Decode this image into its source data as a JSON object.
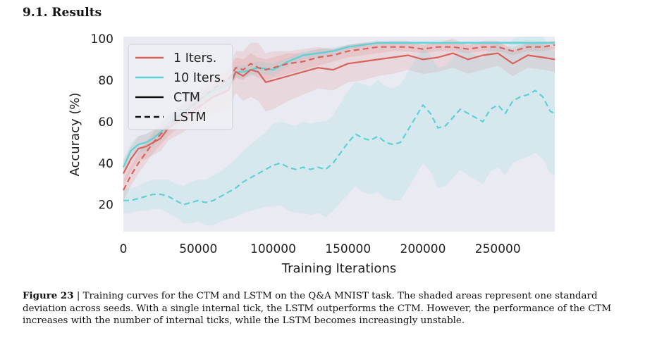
{
  "section": {
    "heading": "9.1. Results"
  },
  "caption": {
    "label": "Figure 23",
    "separator": " | ",
    "text": "Training curves for the CTM and LSTM on the Q&A MNIST task. The shaded areas represent one standard deviation across seeds. With a single internal tick, the LSTM outperforms the CTM. However, the performance of the CTM increases with the number of internal ticks, while the LSTM becomes increasingly unstable."
  },
  "colors": {
    "red": "#d9625b",
    "cyan": "#5bd1d8",
    "plot_bg": "#eaeaf2"
  },
  "chart_data": {
    "type": "line",
    "xlabel": "Training Iterations",
    "ylabel": "Accuracy (%)",
    "xlim": [
      0,
      288000
    ],
    "ylim": [
      7,
      101
    ],
    "xticks": [
      0,
      50000,
      100000,
      150000,
      200000,
      250000
    ],
    "xtick_labels": [
      "0",
      "50000",
      "100000",
      "150000",
      "200000",
      "250000"
    ],
    "yticks": [
      20,
      40,
      60,
      80,
      100
    ],
    "ytick_labels": [
      "20",
      "40",
      "60",
      "80",
      "100"
    ],
    "grid": false,
    "legend": {
      "placement": "top-left",
      "entries": [
        {
          "label": "1 Iters.",
          "color": "#d9625b",
          "style": "solid"
        },
        {
          "label": "10 Iters.",
          "color": "#5bd1d8",
          "style": "solid"
        },
        {
          "label": "CTM",
          "color": "#111111",
          "style": "solid"
        },
        {
          "label": "LSTM",
          "color": "#111111",
          "style": "dashed"
        }
      ]
    },
    "series": [
      {
        "name": "1 Iters. CTM",
        "color": "#d9625b",
        "style": "solid",
        "x": [
          0,
          5000,
          10000,
          15000,
          20000,
          25000,
          30000,
          40000,
          50000,
          60000,
          70000,
          75000,
          80000,
          85000,
          90000,
          95000,
          100000,
          110000,
          120000,
          130000,
          140000,
          150000,
          160000,
          170000,
          180000,
          190000,
          200000,
          210000,
          220000,
          230000,
          240000,
          250000,
          260000,
          270000,
          280000,
          288000
        ],
        "y": [
          35,
          42,
          47,
          48,
          50,
          52,
          57,
          62,
          67,
          72,
          75,
          84,
          82,
          85,
          84,
          79,
          80,
          82,
          84,
          86,
          85,
          88,
          89,
          90,
          91,
          92,
          90,
          91,
          93,
          90,
          92,
          93,
          88,
          92,
          91,
          90
        ],
        "std": [
          6,
          6,
          6,
          6,
          6,
          6,
          6,
          7,
          7,
          8,
          9,
          10,
          12,
          13,
          14,
          14,
          14,
          12,
          11,
          10,
          10,
          9,
          9,
          8,
          8,
          7,
          7,
          7,
          7,
          7,
          7,
          6,
          6,
          6,
          6,
          6
        ]
      },
      {
        "name": "1 Iters. LSTM",
        "color": "#d9625b",
        "style": "dashed",
        "x": [
          0,
          5000,
          10000,
          15000,
          20000,
          25000,
          30000,
          40000,
          50000,
          60000,
          70000,
          75000,
          80000,
          85000,
          90000,
          95000,
          100000,
          110000,
          120000,
          130000,
          140000,
          150000,
          160000,
          170000,
          180000,
          190000,
          200000,
          210000,
          220000,
          230000,
          240000,
          250000,
          260000,
          270000,
          280000,
          288000
        ],
        "y": [
          27,
          34,
          40,
          45,
          50,
          54,
          58,
          64,
          70,
          76,
          80,
          86,
          85,
          88,
          86,
          85,
          86,
          88,
          89,
          91,
          92,
          94,
          95,
          96,
          96,
          96,
          95,
          96,
          96,
          95,
          96,
          96,
          94,
          96,
          96,
          97
        ],
        "std": [
          5,
          5,
          5,
          5,
          5,
          5,
          5,
          5,
          5,
          5,
          5,
          5,
          5,
          5,
          5,
          5,
          5,
          5,
          4,
          4,
          3,
          3,
          3,
          3,
          2,
          2,
          2,
          2,
          2,
          2,
          2,
          2,
          2,
          2,
          2,
          2
        ]
      },
      {
        "name": "10 Iters. CTM",
        "color": "#5bd1d8",
        "style": "solid",
        "x": [
          0,
          5000,
          10000,
          15000,
          20000,
          25000,
          30000,
          40000,
          50000,
          60000,
          70000,
          75000,
          80000,
          90000,
          100000,
          110000,
          120000,
          130000,
          140000,
          150000,
          160000,
          170000,
          180000,
          190000,
          200000,
          210000,
          220000,
          230000,
          240000,
          250000,
          260000,
          270000,
          280000,
          288000
        ],
        "y": [
          38,
          46,
          49,
          50,
          52,
          55,
          59,
          65,
          70,
          75,
          78,
          84,
          84,
          86,
          85,
          89,
          92,
          93,
          94,
          96,
          97,
          98,
          98,
          98,
          98,
          98,
          98,
          98,
          98,
          98,
          98,
          98,
          98,
          98
        ],
        "std": [
          4,
          4,
          4,
          4,
          4,
          4,
          4,
          4,
          3,
          3,
          3,
          3,
          3,
          3,
          3,
          2,
          2,
          2,
          2,
          1,
          1,
          1,
          1,
          1,
          1,
          1,
          1,
          1,
          1,
          1,
          1,
          1,
          1,
          1
        ]
      },
      {
        "name": "10 Iters. LSTM",
        "color": "#5bd1d8",
        "style": "dashed",
        "x": [
          0,
          5000,
          10000,
          15000,
          20000,
          25000,
          30000,
          35000,
          40000,
          45000,
          50000,
          55000,
          60000,
          65000,
          70000,
          75000,
          80000,
          85000,
          90000,
          95000,
          100000,
          105000,
          110000,
          115000,
          120000,
          125000,
          130000,
          135000,
          140000,
          145000,
          150000,
          155000,
          160000,
          165000,
          170000,
          175000,
          180000,
          185000,
          190000,
          195000,
          200000,
          205000,
          210000,
          215000,
          220000,
          225000,
          230000,
          235000,
          240000,
          245000,
          250000,
          255000,
          260000,
          265000,
          270000,
          275000,
          280000,
          285000,
          288000
        ],
        "y": [
          22,
          22,
          23,
          24,
          25,
          25,
          24,
          22,
          20,
          21,
          22,
          21,
          22,
          24,
          26,
          28,
          31,
          33,
          35,
          37,
          39,
          40,
          38,
          37,
          38,
          37,
          38,
          37,
          40,
          45,
          50,
          54,
          52,
          51,
          53,
          50,
          49,
          50,
          56,
          62,
          68,
          64,
          57,
          58,
          62,
          66,
          64,
          62,
          60,
          66,
          68,
          64,
          70,
          72,
          73,
          75,
          72,
          65,
          64
        ],
        "std": [
          6,
          6,
          6,
          7,
          7,
          7,
          8,
          8,
          9,
          10,
          10,
          11,
          12,
          12,
          13,
          14,
          15,
          16,
          17,
          18,
          20,
          20,
          21,
          21,
          22,
          22,
          22,
          23,
          23,
          24,
          25,
          25,
          26,
          26,
          27,
          27,
          27,
          28,
          28,
          28,
          28,
          28,
          29,
          29,
          29,
          29,
          30,
          30,
          30,
          30,
          30,
          30,
          30,
          30,
          30,
          30,
          30,
          30,
          30
        ]
      }
    ]
  }
}
